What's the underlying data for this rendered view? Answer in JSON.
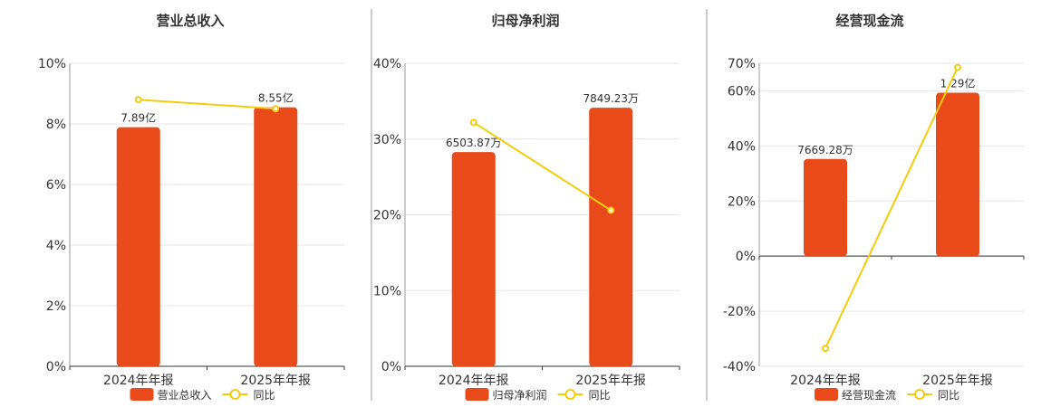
{
  "colors": {
    "bar": "#e84a19",
    "line": "#f2cc0c",
    "grid": "#e6e6ee",
    "axis": "#333333",
    "divider": "#999999"
  },
  "chart_data": [
    {
      "type": "bar",
      "title": "营业总收入",
      "categories": [
        "2024年年报",
        "2025年年报"
      ],
      "series": [
        {
          "name": "营业总收入",
          "type": "bar",
          "axis": "left",
          "values": [
            7.89,
            8.55
          ],
          "labels": [
            "7.89亿",
            "8.55亿"
          ]
        },
        {
          "name": "同比",
          "type": "line",
          "axis": "right",
          "values": [
            8.8,
            8.5
          ]
        }
      ],
      "bar_axis": {
        "ylim": [
          0,
          10
        ],
        "unit": "亿"
      },
      "y_ticks": [
        "0%",
        "2%",
        "4%",
        "6%",
        "8%",
        "10%"
      ],
      "line_axis": {
        "ylim": [
          0,
          10
        ],
        "unit": "%"
      },
      "grid": true,
      "legend": "bottom"
    },
    {
      "type": "bar",
      "title": "归母净利润",
      "categories": [
        "2024年年报",
        "2025年年报"
      ],
      "series": [
        {
          "name": "归母净利润",
          "type": "bar",
          "axis": "left",
          "values": [
            6503.87,
            7849.23
          ],
          "labels": [
            "6503.87万",
            "7849.23万"
          ]
        },
        {
          "name": "同比",
          "type": "line",
          "axis": "right",
          "values": [
            32.2,
            20.6
          ]
        }
      ],
      "bar_axis": {
        "ylim": [
          0,
          9200
        ],
        "unit": "万"
      },
      "y_ticks": [
        "0%",
        "10%",
        "20%",
        "30%",
        "40%"
      ],
      "line_axis": {
        "ylim": [
          0,
          40
        ],
        "unit": "%"
      },
      "grid": true,
      "legend": "bottom"
    },
    {
      "type": "bar",
      "title": "经营现金流",
      "categories": [
        "2024年年报",
        "2025年年报"
      ],
      "series": [
        {
          "name": "经营现金流",
          "type": "bar",
          "axis": "left",
          "values": [
            7669.28,
            12900
          ],
          "labels": [
            "7669.28万",
            "1.29亿"
          ]
        },
        {
          "name": "同比",
          "type": "line",
          "axis": "right",
          "values": [
            -33.5,
            68.5
          ]
        }
      ],
      "bar_axis": {
        "ylim": [
          -8700,
          15225
        ],
        "unit": "万"
      },
      "y_ticks": [
        "-40%",
        "-20%",
        "0%",
        "20%",
        "40%",
        "60%",
        "70%"
      ],
      "y_tick_values": [
        -40,
        -20,
        0,
        20,
        40,
        60,
        70
      ],
      "line_axis": {
        "ylim": [
          -40,
          70
        ],
        "unit": "%"
      },
      "grid": true,
      "legend": "bottom"
    }
  ]
}
